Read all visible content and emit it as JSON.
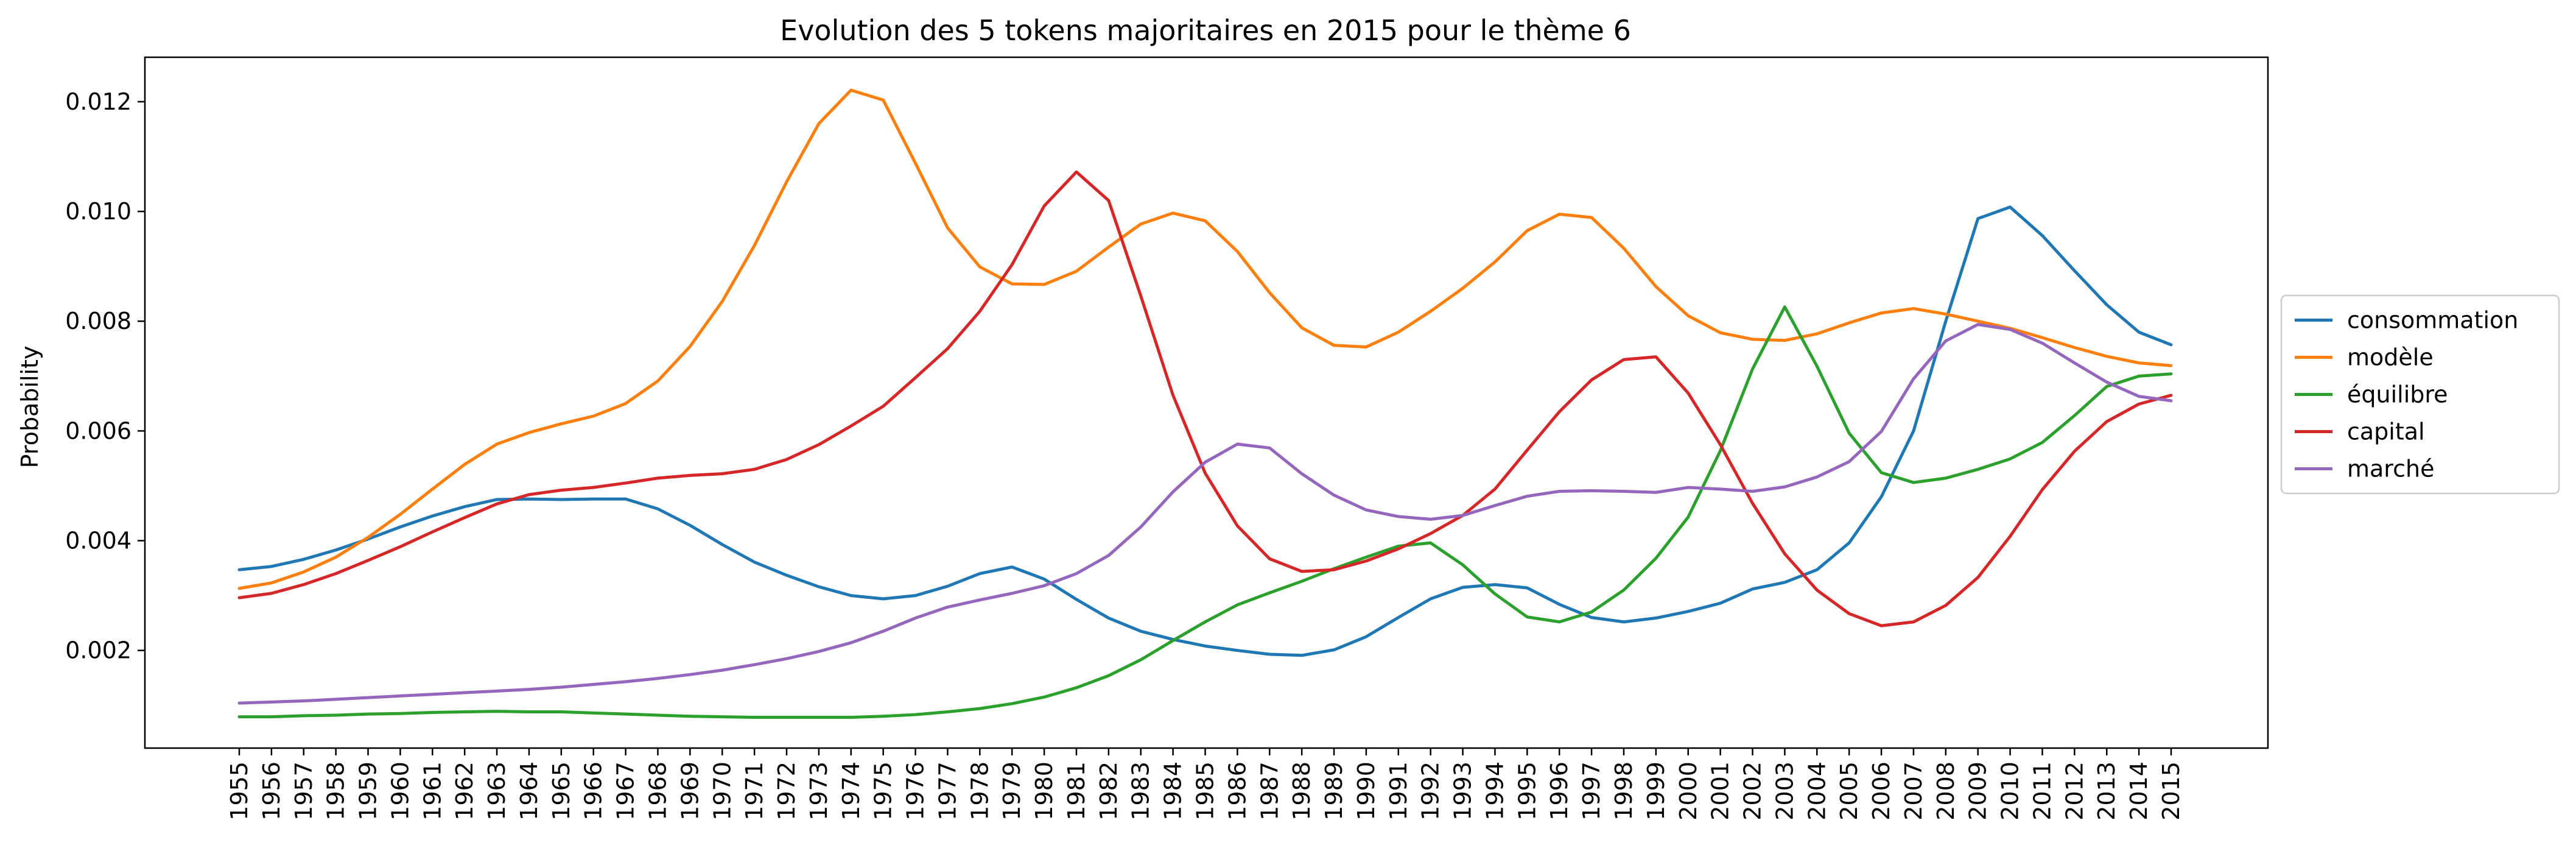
{
  "chart_data": {
    "type": "line",
    "title": "Evolution des 5 tokens majoritaires en 2015 pour le thème 6",
    "xlabel": "",
    "ylabel": "Probability",
    "x": [
      "1955",
      "1956",
      "1957",
      "1958",
      "1959",
      "1960",
      "1961",
      "1962",
      "1963",
      "1964",
      "1965",
      "1966",
      "1967",
      "1968",
      "1969",
      "1970",
      "1971",
      "1972",
      "1973",
      "1974",
      "1975",
      "1976",
      "1977",
      "1978",
      "1979",
      "1980",
      "1981",
      "1982",
      "1983",
      "1984",
      "1985",
      "1986",
      "1987",
      "1988",
      "1989",
      "1990",
      "1991",
      "1992",
      "1993",
      "1994",
      "1995",
      "1996",
      "1997",
      "1998",
      "1999",
      "2000",
      "2001",
      "2002",
      "2003",
      "2004",
      "2005",
      "2006",
      "2007",
      "2008",
      "2009",
      "2010",
      "2011",
      "2012",
      "2013",
      "2014",
      "2015"
    ],
    "ylim": [
      0.00022,
      0.01281
    ],
    "yticks": [
      0.002,
      0.004,
      0.006,
      0.008,
      0.01,
      0.012
    ],
    "ytick_labels": [
      "0.002",
      "0.004",
      "0.006",
      "0.008",
      "0.010",
      "0.012"
    ],
    "legend_position": "right, outside plot",
    "grid": false,
    "series": [
      {
        "name": "consommation",
        "color": "#1f77b4",
        "values": [
          0.00347,
          0.00353,
          0.00366,
          0.00383,
          0.00403,
          0.00425,
          0.00445,
          0.00462,
          0.00475,
          0.00476,
          0.00475,
          0.00476,
          0.00476,
          0.00458,
          0.00428,
          0.00393,
          0.00361,
          0.00337,
          0.00316,
          0.003,
          0.00294,
          0.003,
          0.00317,
          0.0034,
          0.00352,
          0.0033,
          0.00293,
          0.00259,
          0.00235,
          0.0022,
          0.00208,
          0.002,
          0.00193,
          0.00191,
          0.00201,
          0.00225,
          0.0026,
          0.00294,
          0.00315,
          0.0032,
          0.00314,
          0.00284,
          0.0026,
          0.00252,
          0.00259,
          0.00271,
          0.00286,
          0.00312,
          0.00324,
          0.00347,
          0.00396,
          0.0048,
          0.006,
          0.008,
          0.00987,
          0.01008,
          0.00956,
          0.00892,
          0.0083,
          0.0078,
          0.00757
        ]
      },
      {
        "name": "modèle",
        "color": "#ff7f0e",
        "values": [
          0.00313,
          0.00323,
          0.00343,
          0.0037,
          0.00406,
          0.00448,
          0.00494,
          0.00539,
          0.00576,
          0.00597,
          0.00613,
          0.00627,
          0.0065,
          0.00691,
          0.00754,
          0.00836,
          0.00938,
          0.01054,
          0.0116,
          0.01221,
          0.01203,
          0.01088,
          0.0097,
          0.00899,
          0.00868,
          0.00867,
          0.00891,
          0.00935,
          0.00977,
          0.00997,
          0.00983,
          0.00927,
          0.00852,
          0.00788,
          0.00756,
          0.00753,
          0.0078,
          0.00818,
          0.0086,
          0.00908,
          0.00965,
          0.00995,
          0.00989,
          0.00933,
          0.00863,
          0.0081,
          0.00779,
          0.00767,
          0.00765,
          0.00777,
          0.00797,
          0.00815,
          0.00823,
          0.00813,
          0.008,
          0.00787,
          0.0077,
          0.00752,
          0.00736,
          0.00724,
          0.00719
        ]
      },
      {
        "name": "équilibre",
        "color": "#2ca02c",
        "values": [
          0.00079,
          0.00079,
          0.00081,
          0.00082,
          0.00084,
          0.00085,
          0.00087,
          0.00088,
          0.00089,
          0.00088,
          0.00088,
          0.00086,
          0.00084,
          0.00082,
          0.0008,
          0.00079,
          0.00078,
          0.00078,
          0.00078,
          0.00078,
          0.0008,
          0.00083,
          0.00088,
          0.00094,
          0.00103,
          0.00115,
          0.00132,
          0.00154,
          0.00183,
          0.00218,
          0.00252,
          0.00283,
          0.00305,
          0.00326,
          0.00349,
          0.0037,
          0.0039,
          0.00396,
          0.00356,
          0.00303,
          0.00261,
          0.00252,
          0.0027,
          0.0031,
          0.00368,
          0.00443,
          0.00564,
          0.00713,
          0.00826,
          0.00718,
          0.00596,
          0.00524,
          0.00506,
          0.00514,
          0.0053,
          0.00549,
          0.00579,
          0.00628,
          0.00681,
          0.007,
          0.00704
        ]
      },
      {
        "name": "capital",
        "color": "#d62728",
        "values": [
          0.00296,
          0.00304,
          0.0032,
          0.0034,
          0.00364,
          0.00389,
          0.00416,
          0.00442,
          0.00467,
          0.00484,
          0.00492,
          0.00497,
          0.00505,
          0.00514,
          0.00519,
          0.00522,
          0.0053,
          0.00548,
          0.00575,
          0.00609,
          0.00645,
          0.00697,
          0.0075,
          0.00818,
          0.00903,
          0.0101,
          0.01072,
          0.0102,
          0.00846,
          0.00665,
          0.00523,
          0.00427,
          0.00367,
          0.00344,
          0.00347,
          0.00363,
          0.00385,
          0.00413,
          0.00446,
          0.00494,
          0.00565,
          0.00635,
          0.00693,
          0.0073,
          0.00735,
          0.00669,
          0.00575,
          0.00468,
          0.00376,
          0.0031,
          0.00267,
          0.00245,
          0.00252,
          0.00282,
          0.00333,
          0.00408,
          0.00493,
          0.00563,
          0.00617,
          0.00649,
          0.00665
        ]
      },
      {
        "name": "marché",
        "color": "#9467bd",
        "values": [
          0.00104,
          0.00106,
          0.00108,
          0.00111,
          0.00114,
          0.00117,
          0.0012,
          0.00123,
          0.00126,
          0.00129,
          0.00133,
          0.00138,
          0.00143,
          0.00149,
          0.00156,
          0.00164,
          0.00174,
          0.00185,
          0.00198,
          0.00214,
          0.00235,
          0.00259,
          0.00279,
          0.00292,
          0.00304,
          0.00318,
          0.0034,
          0.00373,
          0.00425,
          0.00489,
          0.00543,
          0.00576,
          0.00569,
          0.00522,
          0.00483,
          0.00456,
          0.00444,
          0.00439,
          0.00446,
          0.00464,
          0.00481,
          0.0049,
          0.00491,
          0.0049,
          0.00488,
          0.00497,
          0.00494,
          0.0049,
          0.00498,
          0.00516,
          0.00544,
          0.00599,
          0.00695,
          0.00764,
          0.00794,
          0.00785,
          0.0076,
          0.00724,
          0.00689,
          0.00663,
          0.00655
        ]
      }
    ]
  }
}
